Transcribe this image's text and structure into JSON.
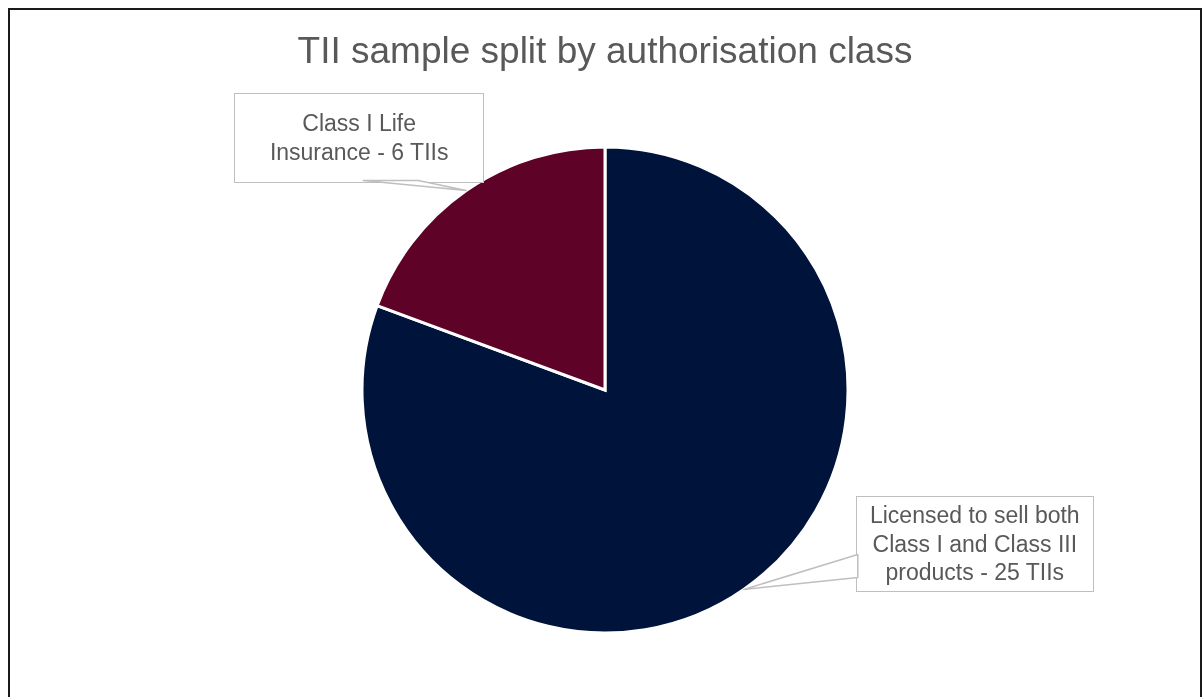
{
  "chart_data": {
    "type": "pie",
    "title": "TII sample split by authorisation class",
    "categories": [
      "Licensed to sell both Class I and Class III products",
      "Class I Life Insurance"
    ],
    "values": [
      25,
      6
    ],
    "value_labels": [
      "25 TIIs",
      "6 TIIs"
    ],
    "colors": [
      "#00133a",
      "#5e0227"
    ]
  }
}
